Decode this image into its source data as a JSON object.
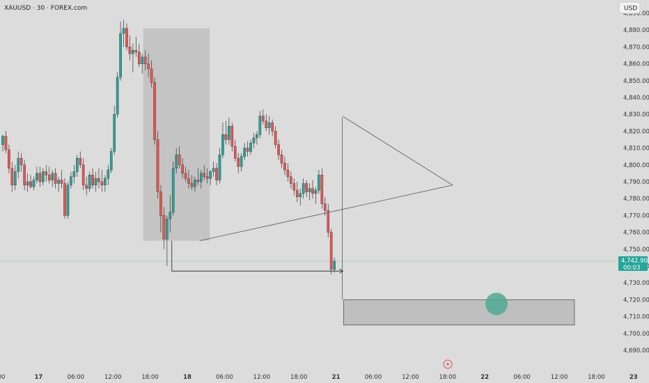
{
  "header": {
    "symbol_title": "XAUUSD · 30 · FOREX.com",
    "currency_label": "USD"
  },
  "price_tag": {
    "price": "4,742.90",
    "countdown": "00:03"
  },
  "colors": {
    "up": "#26a69a",
    "down": "#ef5350",
    "background": "#dcdcdc",
    "box_fill": "#bfbfbf",
    "target_circle": "#4fa994"
  },
  "chart_data": {
    "type": "candlestick",
    "title": "XAUUSD · 30 · FOREX.com",
    "ylabel": "USD",
    "ylim": [
      4685,
      4895
    ],
    "ytick_values": [
      4690,
      4700,
      4710,
      4720,
      4730,
      4740,
      4750,
      4760,
      4770,
      4780,
      4790,
      4800,
      4810,
      4820,
      4830,
      4840,
      4850,
      4860,
      4870,
      4880,
      4890
    ],
    "ytick_labels": [
      "4,690.00",
      "4,700.00",
      "4,710.00",
      "4,720.00",
      "4,730.00",
      "4,740.00",
      "4,750.00",
      "4,760.00",
      "4,770.00",
      "4,780.00",
      "4,790.00",
      "4,800.00",
      "4,810.00",
      "4,820.00",
      "4,830.00",
      "4,840.00",
      "4,850.00",
      "4,860.00",
      "4,870.00",
      "4,880.00",
      "4,890.00"
    ],
    "xticks": [
      {
        "label": "00",
        "t": 0,
        "bold": false
      },
      {
        "label": "17",
        "t": 12,
        "bold": true
      },
      {
        "label": "06:00",
        "t": 24,
        "bold": false
      },
      {
        "label": "12:00",
        "t": 36,
        "bold": false
      },
      {
        "label": "18:00",
        "t": 48,
        "bold": false
      },
      {
        "label": "18",
        "t": 60,
        "bold": true
      },
      {
        "label": "06:00",
        "t": 72,
        "bold": false
      },
      {
        "label": "12:00",
        "t": 84,
        "bold": false
      },
      {
        "label": "18:00",
        "t": 96,
        "bold": false
      },
      {
        "label": "21",
        "t": 108,
        "bold": true
      },
      {
        "label": "06:00",
        "t": 120,
        "bold": false
      },
      {
        "label": "12:00",
        "t": 132,
        "bold": false
      },
      {
        "label": "18:00",
        "t": 144,
        "bold": false
      },
      {
        "label": "22",
        "t": 156,
        "bold": true
      },
      {
        "label": "06:00",
        "t": 168,
        "bold": false
      },
      {
        "label": "12:00",
        "t": 180,
        "bold": false
      },
      {
        "label": "18:00",
        "t": 192,
        "bold": false
      },
      {
        "label": "23",
        "t": 204,
        "bold": true
      }
    ],
    "last_price": 4742.9,
    "candles": [
      [
        4812,
        4818,
        4808,
        4817
      ],
      [
        4817,
        4820,
        4807,
        4809
      ],
      [
        4809,
        4812,
        4795,
        4798
      ],
      [
        4798,
        4802,
        4784,
        4788
      ],
      [
        4788,
        4800,
        4785,
        4796
      ],
      [
        4796,
        4808,
        4792,
        4804
      ],
      [
        4804,
        4807,
        4796,
        4800
      ],
      [
        4800,
        4803,
        4785,
        4788
      ],
      [
        4788,
        4795,
        4784,
        4790
      ],
      [
        4790,
        4794,
        4786,
        4787
      ],
      [
        4787,
        4793,
        4785,
        4791
      ],
      [
        4791,
        4799,
        4789,
        4795
      ],
      [
        4795,
        4799,
        4787,
        4790
      ],
      [
        4790,
        4798,
        4788,
        4796
      ],
      [
        4796,
        4800,
        4790,
        4794
      ],
      [
        4794,
        4799,
        4789,
        4791
      ],
      [
        4791,
        4797,
        4787,
        4795
      ],
      [
        4795,
        4798,
        4786,
        4789
      ],
      [
        4789,
        4793,
        4784,
        4791
      ],
      [
        4791,
        4797,
        4786,
        4789
      ],
      [
        4789,
        4792,
        4768,
        4770
      ],
      [
        4770,
        4790,
        4768,
        4788
      ],
      [
        4788,
        4796,
        4786,
        4793
      ],
      [
        4793,
        4800,
        4789,
        4796
      ],
      [
        4796,
        4806,
        4793,
        4804
      ],
      [
        4804,
        4808,
        4798,
        4800
      ],
      [
        4800,
        4804,
        4785,
        4788
      ],
      [
        4788,
        4793,
        4782,
        4786
      ],
      [
        4786,
        4796,
        4784,
        4794
      ],
      [
        4794,
        4798,
        4786,
        4788
      ],
      [
        4788,
        4796,
        4784,
        4792
      ],
      [
        4792,
        4798,
        4786,
        4790
      ],
      [
        4790,
        4797,
        4784,
        4788
      ],
      [
        4788,
        4794,
        4784,
        4792
      ],
      [
        4792,
        4800,
        4788,
        4797
      ],
      [
        4797,
        4810,
        4795,
        4808
      ],
      [
        4808,
        4835,
        4806,
        4830
      ],
      [
        4830,
        4855,
        4828,
        4852
      ],
      [
        4852,
        4885,
        4850,
        4878
      ],
      [
        4878,
        4886,
        4870,
        4881
      ],
      [
        4881,
        4884,
        4868,
        4870
      ],
      [
        4870,
        4877,
        4862,
        4866
      ],
      [
        4866,
        4872,
        4855,
        4868
      ],
      [
        4868,
        4876,
        4864,
        4867
      ],
      [
        4867,
        4872,
        4858,
        4860
      ],
      [
        4860,
        4866,
        4854,
        4864
      ],
      [
        4864,
        4868,
        4856,
        4860
      ],
      [
        4860,
        4866,
        4852,
        4857
      ],
      [
        4857,
        4862,
        4846,
        4849
      ],
      [
        4849,
        4852,
        4812,
        4815
      ],
      [
        4815,
        4820,
        4780,
        4784
      ],
      [
        4784,
        4788,
        4760,
        4770
      ],
      [
        4770,
        4775,
        4750,
        4756
      ],
      [
        4756,
        4770,
        4740,
        4768
      ],
      [
        4768,
        4782,
        4760,
        4772
      ],
      [
        4772,
        4802,
        4770,
        4798
      ],
      [
        4798,
        4810,
        4795,
        4806
      ],
      [
        4806,
        4811,
        4798,
        4800
      ],
      [
        4800,
        4804,
        4792,
        4795
      ],
      [
        4795,
        4799,
        4790,
        4792
      ],
      [
        4792,
        4797,
        4786,
        4789
      ],
      [
        4789,
        4794,
        4785,
        4787
      ],
      [
        4787,
        4793,
        4784,
        4791
      ],
      [
        4791,
        4798,
        4788,
        4790
      ],
      [
        4790,
        4797,
        4786,
        4795
      ],
      [
        4795,
        4800,
        4791,
        4793
      ],
      [
        4793,
        4798,
        4789,
        4792
      ],
      [
        4792,
        4797,
        4788,
        4796
      ],
      [
        4796,
        4802,
        4793,
        4798
      ],
      [
        4798,
        4801,
        4788,
        4791
      ],
      [
        4791,
        4810,
        4789,
        4806
      ],
      [
        4806,
        4825,
        4804,
        4818
      ],
      [
        4818,
        4826,
        4812,
        4815
      ],
      [
        4815,
        4828,
        4812,
        4823
      ],
      [
        4823,
        4825,
        4808,
        4811
      ],
      [
        4811,
        4815,
        4802,
        4804
      ],
      [
        4804,
        4807,
        4795,
        4799
      ],
      [
        4799,
        4807,
        4796,
        4805
      ],
      [
        4805,
        4813,
        4803,
        4810
      ],
      [
        4810,
        4814,
        4805,
        4808
      ],
      [
        4808,
        4815,
        4806,
        4813
      ],
      [
        4813,
        4819,
        4810,
        4816
      ],
      [
        4816,
        4820,
        4812,
        4818
      ],
      [
        4818,
        4832,
        4816,
        4829
      ],
      [
        4829,
        4833,
        4824,
        4826
      ],
      [
        4826,
        4830,
        4820,
        4822
      ],
      [
        4822,
        4829,
        4818,
        4825
      ],
      [
        4825,
        4827,
        4817,
        4820
      ],
      [
        4820,
        4823,
        4810,
        4812
      ],
      [
        4812,
        4815,
        4803,
        4806
      ],
      [
        4806,
        4809,
        4798,
        4801
      ],
      [
        4801,
        4805,
        4794,
        4797
      ],
      [
        4797,
        4801,
        4790,
        4793
      ],
      [
        4793,
        4796,
        4786,
        4789
      ],
      [
        4789,
        4792,
        4782,
        4785
      ],
      [
        4785,
        4790,
        4778,
        4781
      ],
      [
        4781,
        4786,
        4776,
        4783
      ],
      [
        4783,
        4792,
        4780,
        4789
      ],
      [
        4789,
        4791,
        4781,
        4784
      ],
      [
        4784,
        4789,
        4779,
        4786
      ],
      [
        4786,
        4791,
        4780,
        4783
      ],
      [
        4783,
        4787,
        4777,
        4785
      ],
      [
        4785,
        4797,
        4783,
        4794
      ],
      [
        4794,
        4798,
        4774,
        4777
      ],
      [
        4777,
        4781,
        4770,
        4773
      ],
      [
        4773,
        4777,
        4757,
        4760
      ],
      [
        4760,
        4762,
        4735,
        4738
      ],
      [
        4738,
        4745,
        4736,
        4742.9
      ]
    ]
  }
}
